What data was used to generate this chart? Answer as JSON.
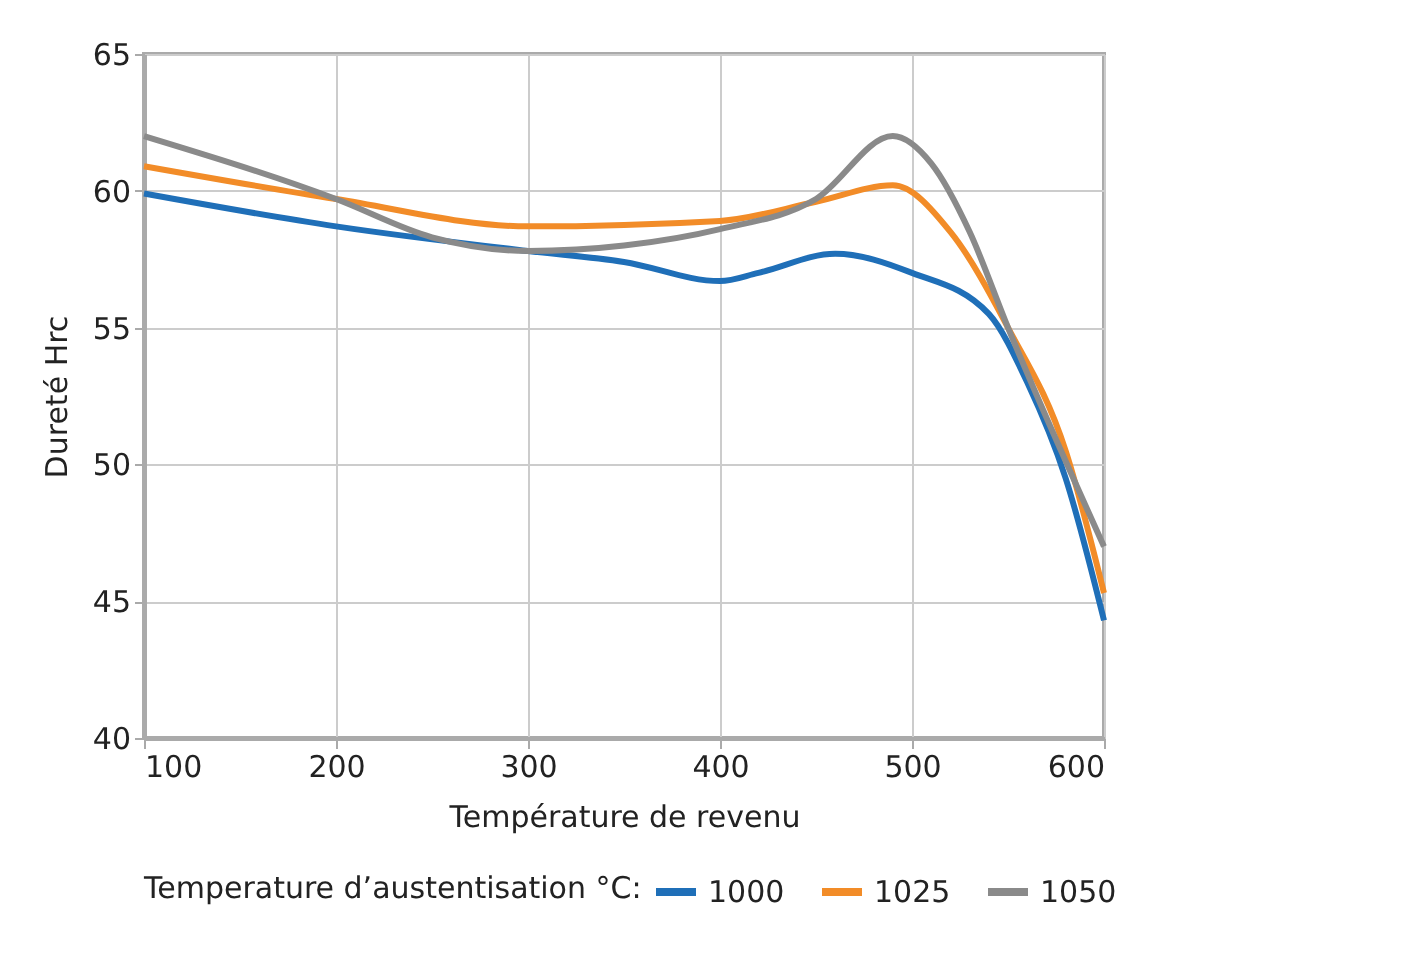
{
  "chart_data": {
    "type": "line",
    "xlabel": "Température de revenu",
    "ylabel": "Dureté Hrc",
    "legend_title": "Temperature d’austentisation °C:",
    "xlim": [
      100,
      600
    ],
    "xticks": [
      100,
      200,
      300,
      400,
      500,
      600
    ],
    "ylim": [
      40,
      65
    ],
    "yticks": [
      40,
      45,
      50,
      55,
      60,
      65
    ],
    "grid": true,
    "legend": "bottom",
    "marker": "none",
    "line_style": "solid",
    "series": [
      {
        "name": "1000",
        "color": "#1f6fb8",
        "x": [
          100,
          200,
          300,
          350,
          400,
          420,
          460,
          500,
          540,
          560,
          580,
          600
        ],
        "values": [
          59.9,
          58.7,
          57.8,
          57.4,
          56.7,
          57.0,
          57.7,
          57.0,
          55.5,
          53.0,
          49.5,
          44.3
        ]
      },
      {
        "name": "1025",
        "color": "#f28c28",
        "x": [
          100,
          200,
          300,
          400,
          450,
          490,
          520,
          550,
          580,
          600
        ],
        "values": [
          60.9,
          59.7,
          58.7,
          58.9,
          59.6,
          60.2,
          58.5,
          55.0,
          50.5,
          45.3
        ]
      },
      {
        "name": "1050",
        "color": "#8a8a8a",
        "x": [
          100,
          200,
          250,
          300,
          350,
          400,
          450,
          490,
          510,
          530,
          550,
          600
        ],
        "values": [
          62.0,
          59.7,
          58.3,
          57.8,
          58.0,
          58.6,
          59.7,
          62.0,
          61.0,
          58.5,
          55.0,
          47.0
        ]
      }
    ]
  }
}
